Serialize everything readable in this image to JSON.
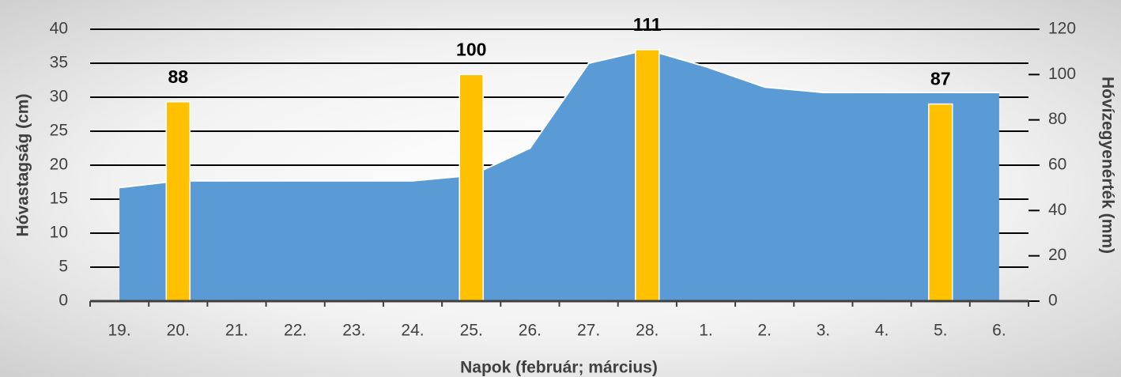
{
  "chart_data": {
    "type": "combo",
    "xlabel": "Napok (február; március)",
    "ylabel": "Hóvastagság (cm)",
    "y2label": "Hóvízegyenérték (mm)",
    "categories": [
      "19.",
      "20.",
      "21.",
      "22.",
      "23.",
      "24.",
      "25.",
      "26.",
      "27.",
      "28.",
      "1.",
      "2.",
      "3.",
      "4.",
      "5.",
      "6."
    ],
    "series": [
      {
        "type": "area",
        "color": "#5b9bd5",
        "values": [
          16.7,
          17.7,
          17.7,
          17.7,
          17.7,
          17.7,
          18.5,
          22.5,
          35,
          37,
          34.5,
          31.5,
          30.7,
          30.7,
          30.7,
          30.7
        ]
      },
      {
        "type": "bar",
        "axis": "y2",
        "color": "#ffc000",
        "values": [
          null,
          88,
          null,
          null,
          null,
          null,
          100,
          null,
          null,
          111,
          null,
          null,
          null,
          null,
          87,
          null
        ]
      }
    ],
    "ylim": [
      0,
      40
    ],
    "yticks": [
      0,
      5,
      10,
      15,
      20,
      25,
      30,
      35,
      40
    ],
    "y2lim": [
      0,
      120
    ],
    "y2ticks": [
      0,
      20,
      40,
      60,
      80,
      100,
      120
    ],
    "grid": true
  }
}
